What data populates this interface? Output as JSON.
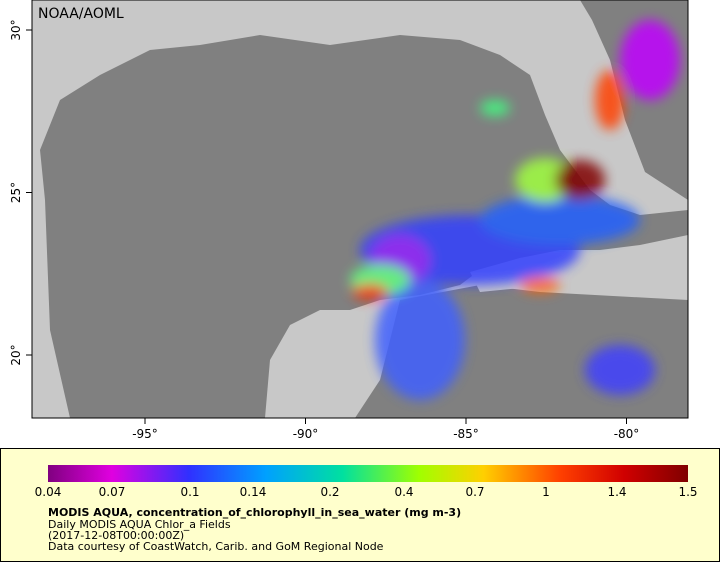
{
  "map": {
    "credit": "NOAA/AOML",
    "longitude_labels": [
      "-95°",
      "-90°",
      "-85°",
      "-80°"
    ],
    "latitude_labels": [
      "30°",
      "25°",
      "20°"
    ]
  },
  "legend": {
    "ticks": [
      "0.04",
      "0.07",
      "0.1",
      "0.14",
      "0.2",
      "0.4",
      "0.7",
      "1",
      "1.4",
      "1.5"
    ],
    "title": "MODIS AQUA, concentration_of_chlorophyll_in_sea_water (mg m-3)",
    "lines": [
      "Daily MODIS AQUA Chlor_a Fields",
      "(2017-12-08T00:00:00Z)",
      "Data courtesy of CoastWatch, Carib. and GoM Regional Node"
    ]
  }
}
